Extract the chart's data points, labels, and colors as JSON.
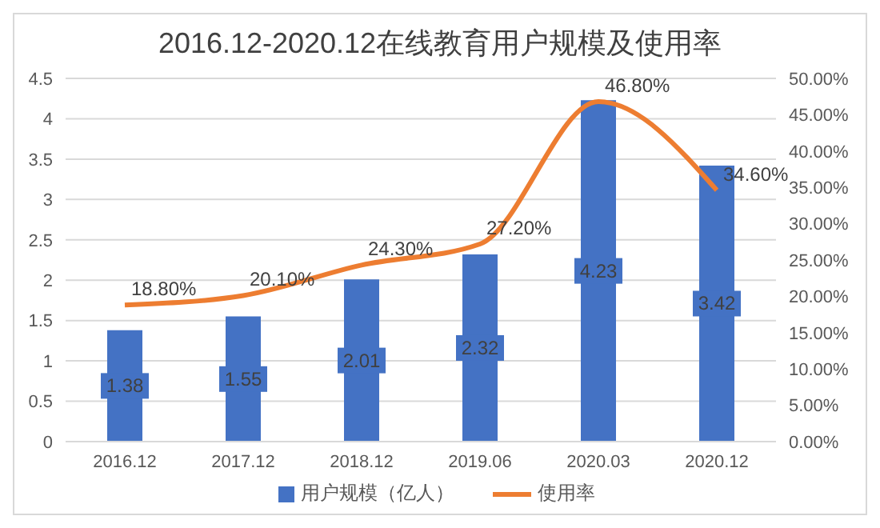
{
  "chart_data": {
    "type": "bar",
    "title": "2016.12-2020.12在线教育用户规模及使用率",
    "categories": [
      "2016.12",
      "2017.12",
      "2018.12",
      "2019.06",
      "2020.03",
      "2020.12"
    ],
    "series": [
      {
        "name": "用户规模（亿人）",
        "color": "#4472c4",
        "values": [
          1.38,
          1.55,
          2.01,
          2.32,
          4.23,
          3.42
        ],
        "value_labels": [
          "1.38",
          "1.55",
          "2.01",
          "2.32",
          "4.23",
          "3.42"
        ]
      },
      {
        "name": "使用率",
        "type": "line",
        "axis": "y2",
        "color": "#ed7d31",
        "values": [
          18.8,
          20.1,
          24.3,
          27.2,
          46.8,
          34.6
        ],
        "value_labels": [
          "18.80%",
          "20.10%",
          "24.30%",
          "27.20%",
          "46.80%",
          "34.60%"
        ]
      }
    ],
    "ylim": [
      0,
      4.5
    ],
    "yticks": [
      0,
      0.5,
      1,
      1.5,
      2,
      2.5,
      3,
      3.5,
      4,
      4.5
    ],
    "y2lim": [
      0,
      50
    ],
    "y2ticks": [
      {
        "value": 0,
        "label": "0.00%"
      },
      {
        "value": 5,
        "label": "5.00%"
      },
      {
        "value": 10,
        "label": "10.00%"
      },
      {
        "value": 15,
        "label": "15.00%"
      },
      {
        "value": 20,
        "label": "20.00%"
      },
      {
        "value": 25,
        "label": "25.00%"
      },
      {
        "value": 30,
        "label": "30.00%"
      },
      {
        "value": 35,
        "label": "35.00%"
      },
      {
        "value": 40,
        "label": "40.00%"
      },
      {
        "value": 45,
        "label": "45.00%"
      },
      {
        "value": 50,
        "label": "50.00%"
      }
    ],
    "grid": "y",
    "legend": "bottom",
    "marker": "none",
    "line_style": "solid"
  }
}
